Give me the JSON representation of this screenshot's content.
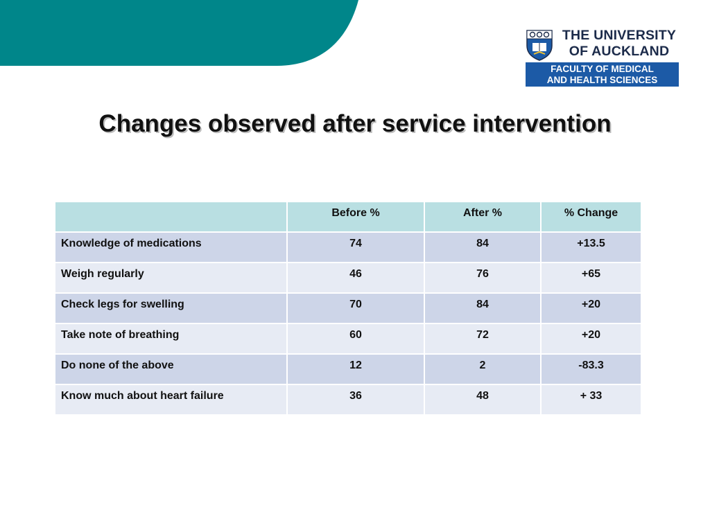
{
  "colors": {
    "accent_teal": "#00868a",
    "header_bg": "#b9dfe2",
    "row_odd_bg": "#cdd5e8",
    "row_even_bg": "#e7ebf4",
    "logo_navy": "#1c2b4a",
    "faculty_blue": "#1c5aa6"
  },
  "logo": {
    "line1": "THE UNIVERSITY",
    "line2": "OF AUCKLAND",
    "faculty_line1": "FACULTY OF MEDICAL",
    "faculty_line2": "AND HEALTH SCIENCES"
  },
  "title": "Changes observed after service intervention",
  "table": {
    "columns": [
      "",
      "Before %",
      "After %",
      "% Change"
    ],
    "rows": [
      {
        "label": "Knowledge of medications",
        "before": "74",
        "after": "84",
        "change": "+13.5"
      },
      {
        "label": "Weigh regularly",
        "before": "46",
        "after": "76",
        "change": "+65"
      },
      {
        "label": "Check legs for swelling",
        "before": "70",
        "after": "84",
        "change": "+20"
      },
      {
        "label": "Take note of breathing",
        "before": "60",
        "after": "72",
        "change": "+20"
      },
      {
        "label": "Do none of the above",
        "before": "12",
        "after": "2",
        "change": "-83.3"
      },
      {
        "label": "Know much about heart failure",
        "before": "36",
        "after": "48",
        "change": "+ 33"
      }
    ]
  }
}
